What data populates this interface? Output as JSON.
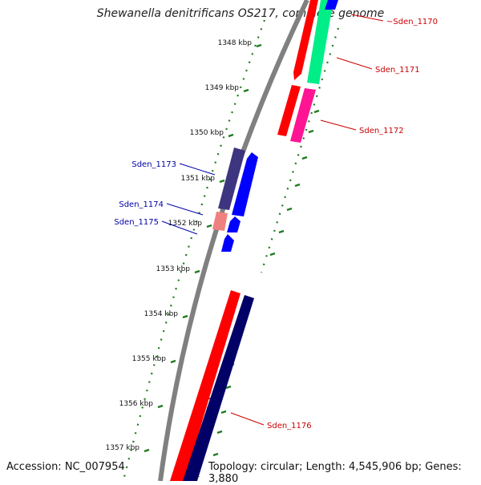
{
  "title": "Shewanella denitrificans OS217, complete genome",
  "footer": {
    "accession": "Accession: NC_007954",
    "summary": "Topology: circular; Length: 4,545,906 bp; Genes: 3,880"
  },
  "ticks": [
    "1348 kbp",
    "1349 kbp",
    "1350 kbp",
    "1351 kbp",
    "1352 kbp",
    "1353 kbp",
    "1354 kbp",
    "1355 kbp",
    "1356 kbp",
    "1357 kbp"
  ],
  "genes_outer": [
    {
      "label": "~Sden_1170",
      "color": "#cc0000"
    },
    {
      "label": "Sden_1171",
      "color": "#cc0000"
    },
    {
      "label": "Sden_1172",
      "color": "#cc0000"
    },
    {
      "label": "Sden_1176",
      "color": "#cc0000"
    }
  ],
  "genes_inner": [
    {
      "label": "Sden_1173",
      "color": "#0000aa"
    },
    {
      "label": "Sden_1174",
      "color": "#0000aa"
    },
    {
      "label": "Sden_1175",
      "color": "#0000aa"
    }
  ],
  "colors": {
    "backbone": "#808080",
    "tick": "#1f7a1f",
    "red": "#ff0000",
    "green": "#00ee88",
    "pink": "#ff1493",
    "purple": "#3d3580",
    "blue": "#0000ff",
    "navy": "#000066",
    "salmon": "#f08080"
  }
}
